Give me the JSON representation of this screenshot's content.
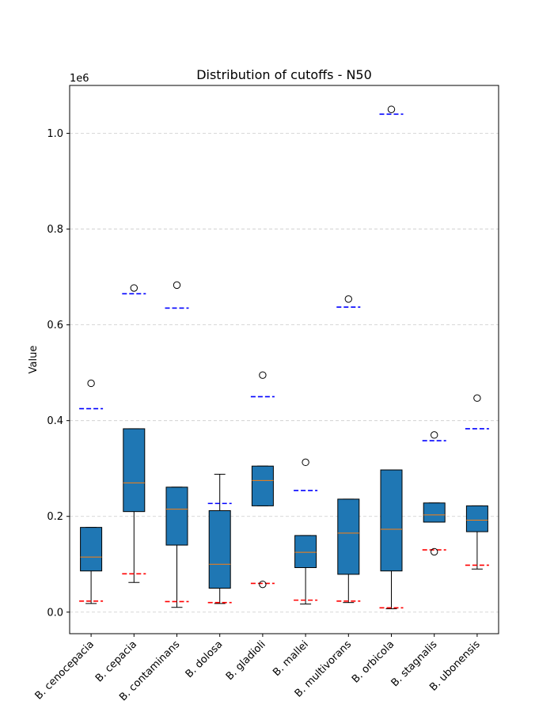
{
  "chart_data": {
    "type": "boxplot",
    "title": "Distribution of cutoffs - N50",
    "xlabel": "",
    "ylabel": "Value",
    "y_scale_label": "1e6",
    "ylim": [
      -45000,
      1100000
    ],
    "yticks": [
      0,
      200000,
      400000,
      600000,
      800000,
      1000000
    ],
    "ytick_labels": [
      "0.0",
      "0.2",
      "0.4",
      "0.6",
      "0.8",
      "1.0"
    ],
    "grid": "y-dashed",
    "colors": {
      "box_fill": "#1f77b4",
      "median": "#ff7f0e",
      "upper_cutoff": "#0000ff",
      "lower_cutoff": "#ff0000"
    },
    "categories": [
      "B. cenocepacia",
      "B. cepacia",
      "B. contaminans",
      "B. dolosa",
      "B. gladioli",
      "B. mallei",
      "B. multivorans",
      "B. orbicola",
      "B. stagnalis",
      "B. ubonensis"
    ],
    "boxes": [
      {
        "whislo": 18000,
        "q1": 86000,
        "med": 115000,
        "q3": 177000,
        "whishi": 177000,
        "fliers": [
          478000
        ],
        "upper_cutoff": 425000,
        "lower_cutoff": 23000
      },
      {
        "whislo": 62000,
        "q1": 210000,
        "med": 270000,
        "q3": 383000,
        "whishi": 383000,
        "fliers": [
          677000
        ],
        "upper_cutoff": 665000,
        "lower_cutoff": 80000
      },
      {
        "whislo": 10000,
        "q1": 140000,
        "med": 215000,
        "q3": 261000,
        "whishi": 261000,
        "fliers": [
          683000
        ],
        "upper_cutoff": 635000,
        "lower_cutoff": 22000
      },
      {
        "whislo": 18000,
        "q1": 50000,
        "med": 100000,
        "q3": 212000,
        "whishi": 288000,
        "fliers": [],
        "upper_cutoff": 227000,
        "lower_cutoff": 20000
      },
      {
        "whislo": 222000,
        "q1": 222000,
        "med": 275000,
        "q3": 305000,
        "whishi": 305000,
        "fliers": [
          495000,
          58000
        ],
        "upper_cutoff": 450000,
        "lower_cutoff": 60000
      },
      {
        "whislo": 17000,
        "q1": 93000,
        "med": 125000,
        "q3": 160000,
        "whishi": 160000,
        "fliers": [
          313000
        ],
        "upper_cutoff": 254000,
        "lower_cutoff": 25000
      },
      {
        "whislo": 20000,
        "q1": 79000,
        "med": 165000,
        "q3": 236000,
        "whishi": 236000,
        "fliers": [
          654000
        ],
        "upper_cutoff": 637000,
        "lower_cutoff": 23000
      },
      {
        "whislo": 7000,
        "q1": 86000,
        "med": 173000,
        "q3": 297000,
        "whishi": 297000,
        "fliers": [
          1050000
        ],
        "upper_cutoff": 1040000,
        "lower_cutoff": 9000
      },
      {
        "whislo": 188000,
        "q1": 188000,
        "med": 203000,
        "q3": 228000,
        "whishi": 228000,
        "fliers": [
          370000,
          126000
        ],
        "upper_cutoff": 358000,
        "lower_cutoff": 130000
      },
      {
        "whislo": 90000,
        "q1": 168000,
        "med": 192000,
        "q3": 222000,
        "whishi": 222000,
        "fliers": [
          447000
        ],
        "upper_cutoff": 383000,
        "lower_cutoff": 98000
      }
    ]
  }
}
